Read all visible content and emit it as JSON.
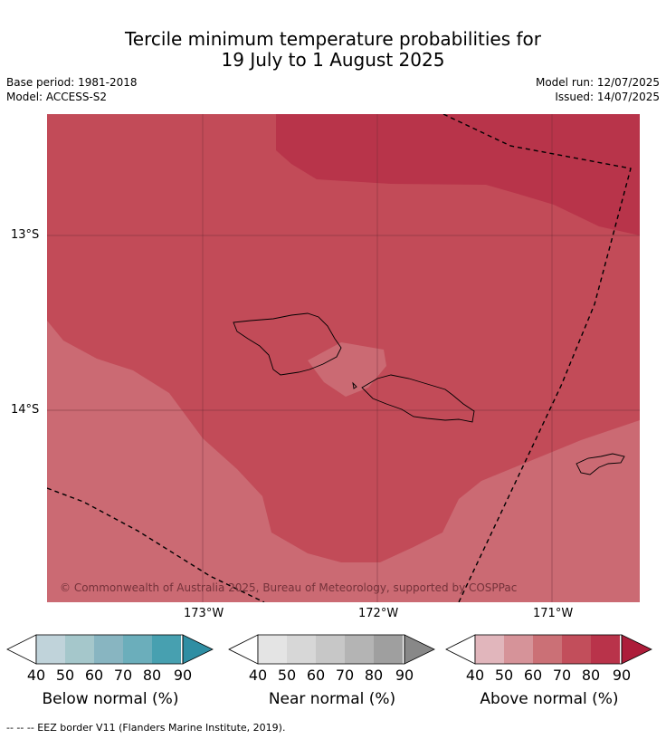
{
  "title_line1": "Tercile minimum temperature probabilities for",
  "title_line2": "19 July to 1 August 2025",
  "base_period": "Base period: 1981-2018",
  "model": "Model: ACCESS-S2",
  "model_run": "Model run: 12/07/2025",
  "issued": "Issued: 14/07/2025",
  "lat_labels": [
    "13°S",
    "14°S"
  ],
  "lon_labels": [
    "173°W",
    "172°W",
    "171°W"
  ],
  "copyright": "© Commonwealth of Australia 2025, Bureau of Meteorology, supported by COSPPac",
  "legends": [
    {
      "title": "Below normal (%)",
      "colors": [
        "#c0d3da",
        "#a5c7cb",
        "#88b5c1",
        "#6baebb",
        "#47a0b0",
        "#2f8ea3"
      ]
    },
    {
      "title": "Near normal (%)",
      "colors": [
        "#e4e4e4",
        "#d7d7d7",
        "#c7c7c7",
        "#b4b4b4",
        "#9f9f9f",
        "#888888"
      ]
    },
    {
      "title": "Above normal (%)",
      "colors": [
        "#e1b6bc",
        "#d69399",
        "#cb7076",
        "#c24e5b",
        "#b9334a",
        "#ad1d3a"
      ]
    }
  ],
  "tick_values": [
    "40",
    "50",
    "60",
    "70",
    "80",
    "90"
  ],
  "footer": "--  --  -- EEZ border V11 (Flanders Marine Institute, 2019).",
  "map_colors": {
    "p60": "#cb6a73",
    "p70": "#c24b58",
    "p80": "#b8344a"
  }
}
